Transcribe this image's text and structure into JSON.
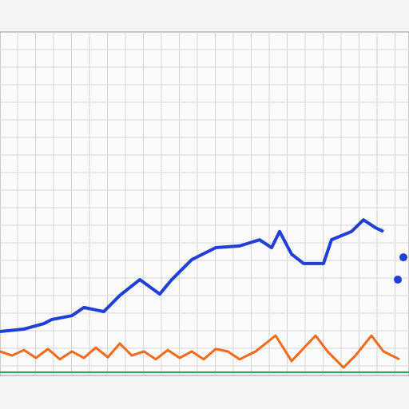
{
  "chart_data": {
    "type": "line",
    "xlim": [
      0,
      512
    ],
    "ylim": [
      0,
      100
    ],
    "grid": true,
    "series": [
      {
        "color": "#1f3fd6",
        "x": [
          0,
          30,
          55,
          65,
          90,
          105,
          130,
          150,
          175,
          200,
          215,
          240,
          270,
          300,
          325,
          340,
          350,
          365,
          380,
          405,
          415,
          440,
          455,
          470,
          480
        ],
        "values": [
          12.8,
          13.5,
          15.1,
          16.3,
          17.4,
          19.8,
          18.6,
          23.3,
          27.9,
          23.7,
          27.9,
          33.7,
          37.2,
          37.7,
          39.5,
          37.2,
          41.9,
          35.3,
          32.6,
          32.6,
          39.5,
          41.9,
          45.3,
          43.0,
          41.9
        ]
      },
      {
        "color": "#f26a1b",
        "x": [
          0,
          15,
          30,
          45,
          60,
          75,
          90,
          105,
          120,
          135,
          150,
          165,
          180,
          195,
          210,
          225,
          240,
          255,
          270,
          285,
          300,
          320,
          345,
          365,
          395,
          410,
          430,
          445,
          465,
          480,
          500
        ],
        "values": [
          7.0,
          5.8,
          7.4,
          5.1,
          7.7,
          4.7,
          7.0,
          5.1,
          8.1,
          5.3,
          9.3,
          5.8,
          7.0,
          4.7,
          7.4,
          5.1,
          7.0,
          4.7,
          7.7,
          7.0,
          4.7,
          7.0,
          11.6,
          4.2,
          11.6,
          7.0,
          2.3,
          5.8,
          11.6,
          7.0,
          4.7
        ]
      },
      {
        "color": "#1f3fd6",
        "marker": true,
        "x": [
          498,
          505
        ],
        "values": [
          27.9,
          34.4
        ]
      }
    ]
  }
}
